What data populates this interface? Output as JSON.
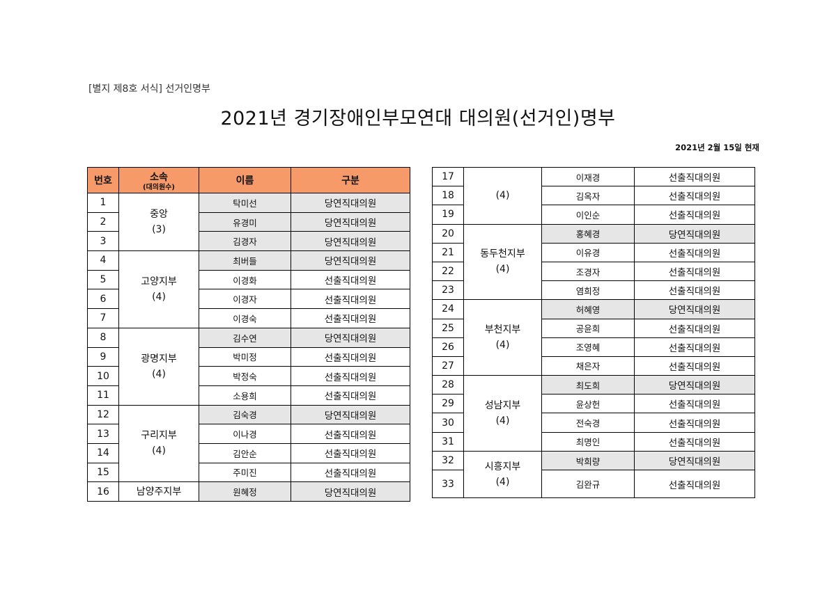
{
  "form_label": "[별지 제8호 서식] 선거인명부",
  "title": "2021년  경기장애인부모연대  대의원(선거인)명부",
  "as_of": "2021년  2월  15일  현재",
  "headers": {
    "number": "번호",
    "affiliation": "소속",
    "affiliation_sub": "(대의원수)",
    "name": "이름",
    "category": "구분"
  },
  "left_groups": [
    {
      "branch": "중앙",
      "count": "(3)",
      "rows": [
        {
          "no": "1",
          "name": "탁미선",
          "cat": "당연직대의원",
          "gray": true
        },
        {
          "no": "2",
          "name": "유경미",
          "cat": "당연직대의원",
          "gray": true
        },
        {
          "no": "3",
          "name": "김경자",
          "cat": "당연직대의원",
          "gray": true
        }
      ]
    },
    {
      "branch": "고양지부",
      "count": "(4)",
      "rows": [
        {
          "no": "4",
          "name": "최버들",
          "cat": "당연직대의원",
          "gray": true
        },
        {
          "no": "5",
          "name": "이경화",
          "cat": "선출직대의원",
          "gray": false
        },
        {
          "no": "6",
          "name": "이경자",
          "cat": "선출직대의원",
          "gray": false
        },
        {
          "no": "7",
          "name": "이경숙",
          "cat": "선출직대의원",
          "gray": false
        }
      ]
    },
    {
      "branch": "광명지부",
      "count": "(4)",
      "rows": [
        {
          "no": "8",
          "name": "김수연",
          "cat": "당연직대의원",
          "gray": true
        },
        {
          "no": "9",
          "name": "박미정",
          "cat": "선출직대의원",
          "gray": false
        },
        {
          "no": "10",
          "name": "박정숙",
          "cat": "선출직대의원",
          "gray": false
        },
        {
          "no": "11",
          "name": "소용희",
          "cat": "선출직대의원",
          "gray": false
        }
      ]
    },
    {
      "branch": "구리지부",
      "count": "(4)",
      "rows": [
        {
          "no": "12",
          "name": "김숙경",
          "cat": "당연직대의원",
          "gray": true
        },
        {
          "no": "13",
          "name": "이나경",
          "cat": "선출직대의원",
          "gray": false
        },
        {
          "no": "14",
          "name": "김안순",
          "cat": "선출직대의원",
          "gray": false
        },
        {
          "no": "15",
          "name": "주미진",
          "cat": "선출직대의원",
          "gray": false
        }
      ]
    },
    {
      "branch": "남양주지부",
      "count": "",
      "rows": [
        {
          "no": "16",
          "name": "원혜정",
          "cat": "당연직대의원",
          "gray": true
        }
      ]
    }
  ],
  "right_groups": [
    {
      "branch": "",
      "count": "(4)",
      "rows": [
        {
          "no": "17",
          "name": "이재경",
          "cat": "선출직대의원",
          "gray": false
        },
        {
          "no": "18",
          "name": "김옥자",
          "cat": "선출직대의원",
          "gray": false
        },
        {
          "no": "19",
          "name": "이인순",
          "cat": "선출직대의원",
          "gray": false
        }
      ]
    },
    {
      "branch": "동두천지부",
      "count": "(4)",
      "rows": [
        {
          "no": "20",
          "name": "홍혜경",
          "cat": "당연직대의원",
          "gray": true
        },
        {
          "no": "21",
          "name": "이유경",
          "cat": "선출직대의원",
          "gray": false
        },
        {
          "no": "22",
          "name": "조경자",
          "cat": "선출직대의원",
          "gray": false
        },
        {
          "no": "23",
          "name": "염희정",
          "cat": "선출직대의원",
          "gray": false
        }
      ]
    },
    {
      "branch": "부천지부",
      "count": "(4)",
      "rows": [
        {
          "no": "24",
          "name": "허혜영",
          "cat": "당연직대의원",
          "gray": true
        },
        {
          "no": "25",
          "name": "공윤희",
          "cat": "선출직대의원",
          "gray": false
        },
        {
          "no": "26",
          "name": "조영혜",
          "cat": "선출직대의원",
          "gray": false
        },
        {
          "no": "27",
          "name": "채은자",
          "cat": "선출직대의원",
          "gray": false
        }
      ]
    },
    {
      "branch": "성남지부",
      "count": "(4)",
      "rows": [
        {
          "no": "28",
          "name": "최도희",
          "cat": "당연직대의원",
          "gray": true
        },
        {
          "no": "29",
          "name": "윤상헌",
          "cat": "선출직대의원",
          "gray": false
        },
        {
          "no": "30",
          "name": "전숙경",
          "cat": "선출직대의원",
          "gray": false
        },
        {
          "no": "31",
          "name": "최명인",
          "cat": "선출직대의원",
          "gray": false
        }
      ]
    },
    {
      "branch": "시흥지부",
      "count": "(4)",
      "rows": [
        {
          "no": "32",
          "name": "박희량",
          "cat": "당연직대의원",
          "gray": true
        },
        {
          "no": "33",
          "name": "김완규",
          "cat": "선출직대의원",
          "gray": false
        }
      ]
    }
  ],
  "colors": {
    "header_bg": "#f79a6a",
    "gray_cell": "#e6e6e6"
  }
}
